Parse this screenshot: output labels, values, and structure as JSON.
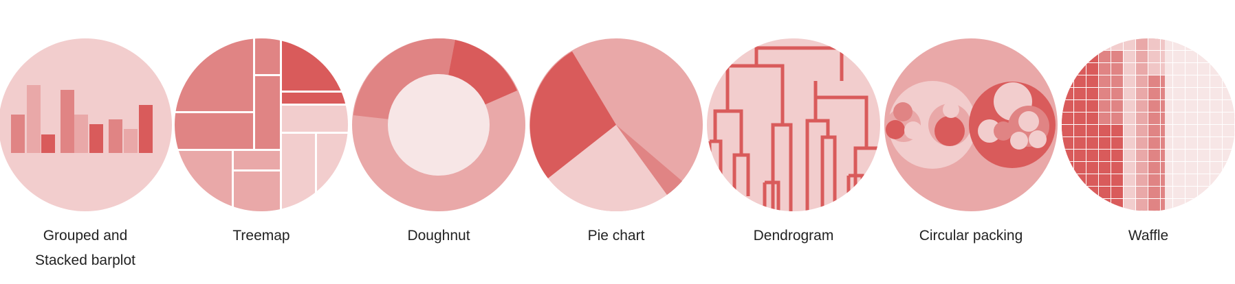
{
  "colors": {
    "bg": "#f2cdcd",
    "light": "#f7e6e6",
    "pale": "#f0c6c6",
    "mid": "#e9a8a8",
    "strong": "#e08484",
    "dark": "#d95b5b"
  },
  "gallery": {
    "items": [
      {
        "id": "barplot",
        "label_lines": [
          "Grouped and",
          "Stacked barplot"
        ]
      },
      {
        "id": "treemap",
        "label_lines": [
          "Treemap"
        ]
      },
      {
        "id": "doughnut",
        "label_lines": [
          "Doughnut"
        ]
      },
      {
        "id": "pie",
        "label_lines": [
          "Pie chart"
        ]
      },
      {
        "id": "dendrogram",
        "label_lines": [
          "Dendrogram"
        ]
      },
      {
        "id": "packing",
        "label_lines": [
          "Circular packing"
        ]
      },
      {
        "id": "waffle",
        "label_lines": [
          "Waffle"
        ]
      }
    ]
  }
}
